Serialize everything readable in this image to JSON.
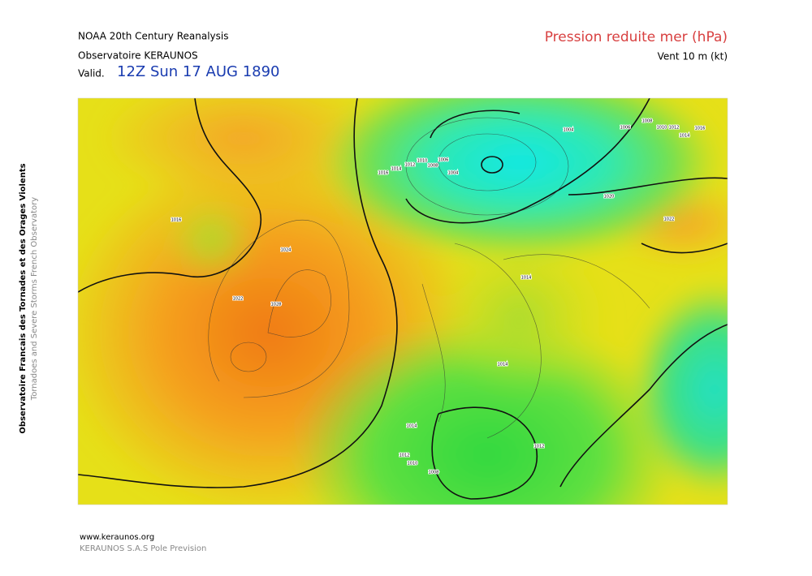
{
  "header": {
    "title": "NOAA 20th Century Reanalysis",
    "subtitle": "Observatoire KERAUNOS",
    "valid_label": "Valid.",
    "valid_time": "12Z Sun 17 AUG 1890",
    "parameter": "Pression reduite mer (hPa)",
    "wind": "Vent 10 m (kt)"
  },
  "side": {
    "line1": "Observatoire Francais des Tornades et des Orages Violents",
    "line2": "Tornadoes and Severe Storms French Observatory"
  },
  "map": {
    "isobar_labels": [
      "1016",
      "1024",
      "1022",
      "1028",
      "1016",
      "1014",
      "1012",
      "1010",
      "1008",
      "1006",
      "1004",
      "1004",
      "1006",
      "1008",
      "1010",
      "1012",
      "1014",
      "1016",
      "1020",
      "1022",
      "1014",
      "1014",
      "1014",
      "1012",
      "1010",
      "1008",
      "1012"
    ]
  },
  "footer": {
    "url": "www.keraunos.org",
    "company": "KERAUNOS S.A.S Pole Prevision"
  }
}
